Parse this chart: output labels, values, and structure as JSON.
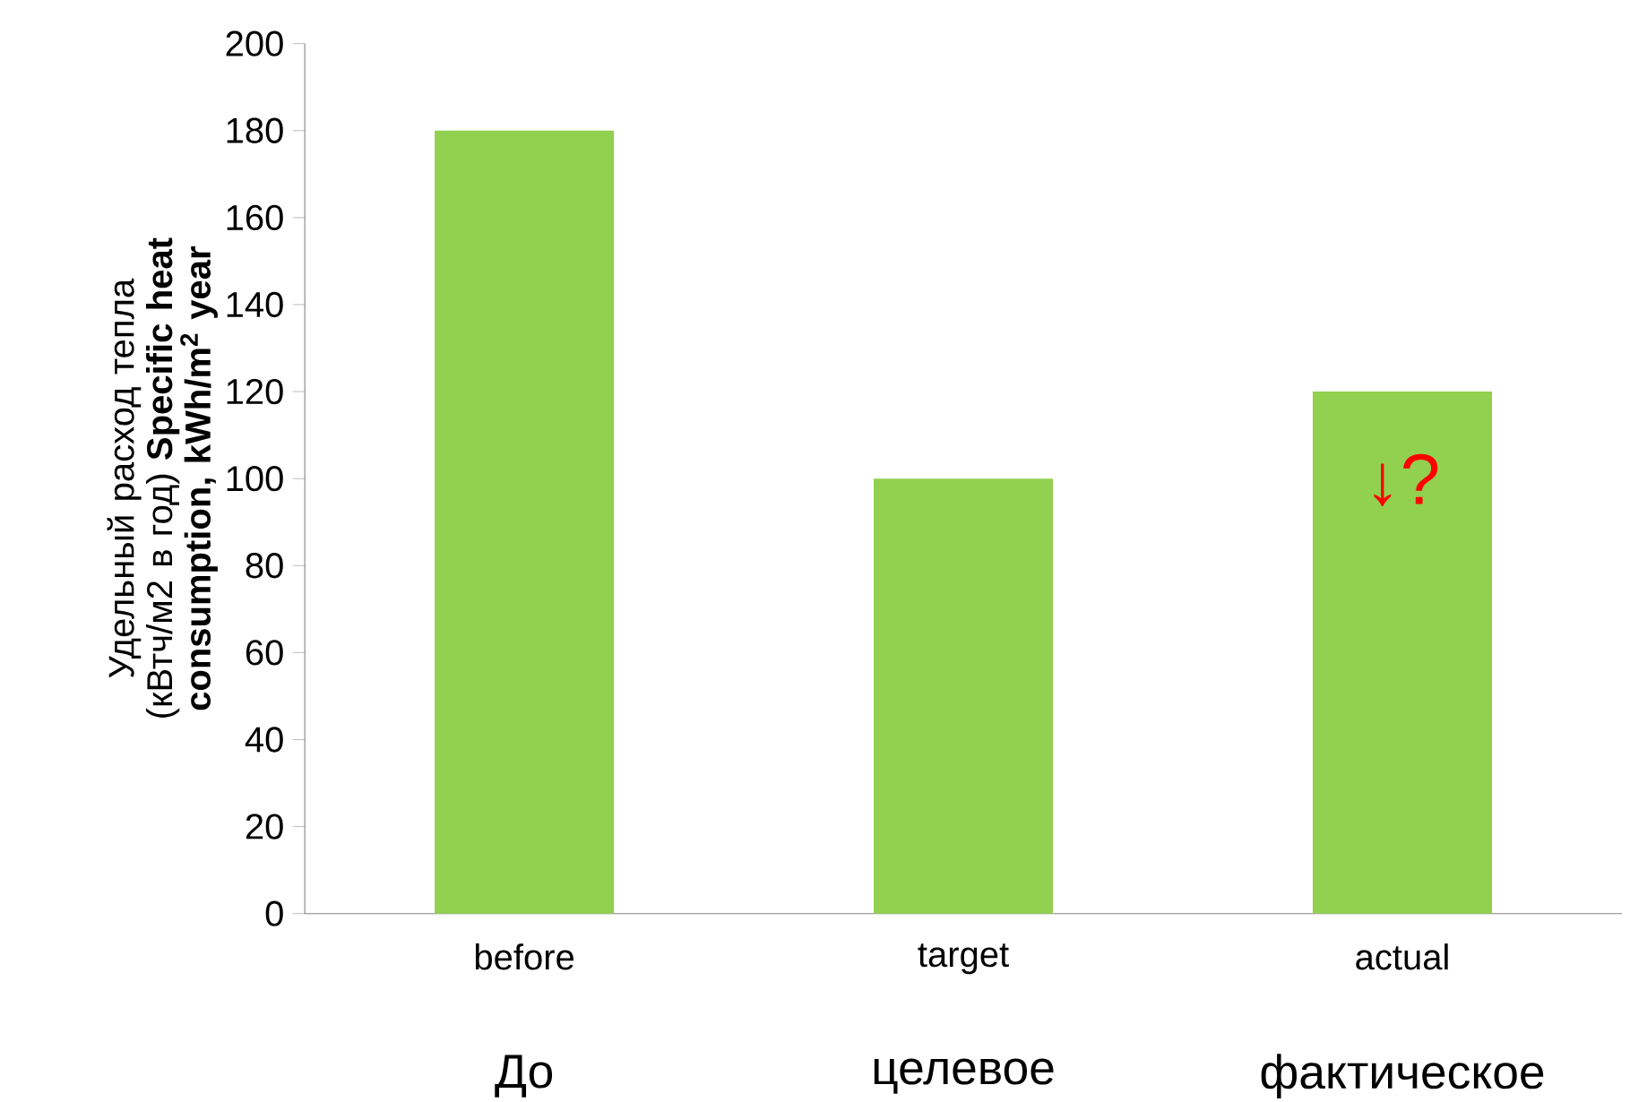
{
  "chart_data": {
    "type": "bar",
    "ylabel": "Удельный расход тепла (кВтч/м2 в год) **Specific heat consumption, kWh/m$^{2}$ year**",
    "categories": [
      "before",
      "target",
      "actual"
    ],
    "values": [
      180,
      100,
      120
    ],
    "color": "#92d050",
    "ylim": [
      0,
      200
    ],
    "yticks": [
      0,
      20,
      40,
      60,
      80,
      100,
      120,
      140,
      160,
      180,
      200
    ],
    "annotations": [
      "До",
      "целевое",
      "фактическое",
      "↓?"
    ]
  }
}
